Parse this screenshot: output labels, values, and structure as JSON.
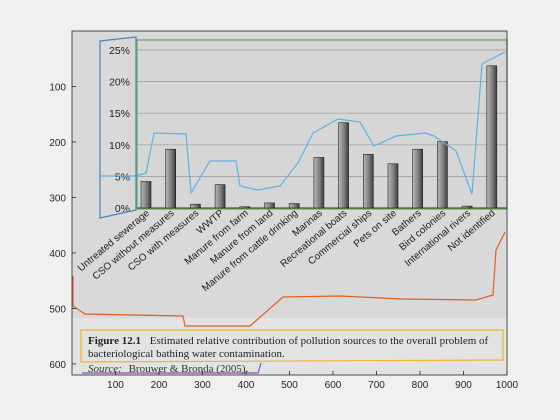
{
  "outer_axes": {
    "xlim": [
      0,
      1000
    ],
    "ylim": [
      0,
      620
    ],
    "y_reversed": true,
    "x_ticks": [
      "100",
      "200",
      "300",
      "400",
      "500",
      "600",
      "700",
      "800",
      "900",
      "1000"
    ],
    "y_ticks": [
      "100",
      "200",
      "300",
      "400",
      "500",
      "600"
    ]
  },
  "chart_data": {
    "type": "bar",
    "categories": [
      "Untreated sewerage",
      "CSO without measures",
      "CSO with measures",
      "WWTP",
      "Manure from farm",
      "Manure from land",
      "Manure from cattle drinking",
      "Marinas",
      "Recreational boats",
      "Commercial ships",
      "Pets on site",
      "Bathers",
      "Bird colonies",
      "International rivers",
      "Not identified"
    ],
    "values": [
      4.2,
      9.3,
      0.6,
      3.7,
      0.2,
      0.8,
      0.7,
      8.0,
      13.5,
      8.5,
      7.0,
      9.3,
      10.5,
      0.3,
      22.5
    ],
    "ylim": [
      0,
      25
    ],
    "y_ticks": [
      "0%",
      "5%",
      "10%",
      "15%",
      "20%",
      "25%"
    ],
    "grid": true,
    "bar_color": "#7a7a7a",
    "plot_background": "#d6d6d6"
  },
  "caption": {
    "figure_label": "Figure 12.1",
    "line1": "Estimated relative contribution of pollution sources to the overall problem of",
    "line2": "bacteriological bathing water contamination.",
    "source_label": "Source:",
    "source_text": "Brouwer & Bronda (2005)."
  },
  "annotation_colors": {
    "green": "#6aa84f",
    "blue": "#3d85c6",
    "light_blue": "#5ab4e6",
    "red_orange": "#e06020",
    "orange": "#f2b233",
    "purple": "#8e4fa8"
  }
}
